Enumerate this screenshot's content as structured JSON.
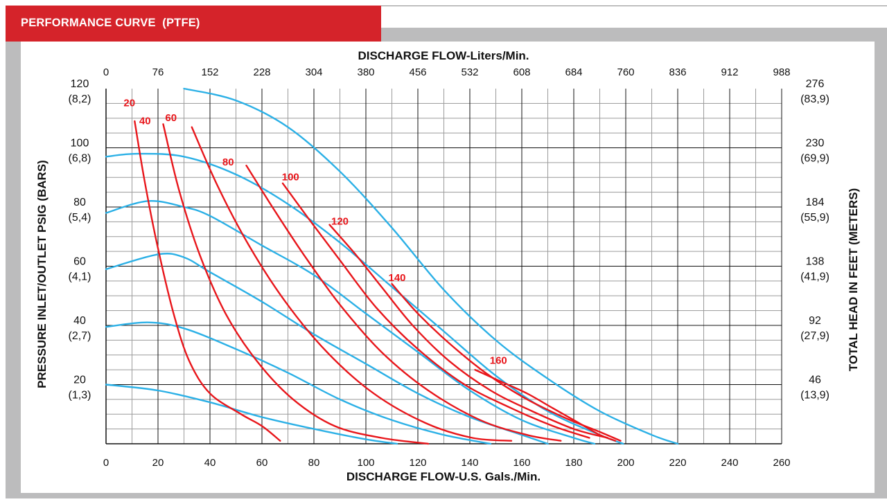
{
  "header": {
    "title": "PERFORMANCE CURVE  (PTFE)"
  },
  "chart_data": {
    "type": "line",
    "x_top_label": "DISCHARGE FLOW-Liters/Min.",
    "x_top_ticks": [
      "0",
      "76",
      "152",
      "228",
      "304",
      "380",
      "456",
      "532",
      "608",
      "684",
      "760",
      "836",
      "912",
      "988"
    ],
    "xlabel": "DISCHARGE FLOW-U.S. Gals./Min.",
    "x_ticks": [
      "0",
      "20",
      "40",
      "60",
      "80",
      "100",
      "120",
      "140",
      "160",
      "180",
      "200",
      "220",
      "240",
      "260"
    ],
    "xlim": [
      0,
      260
    ],
    "ylabel": "PRESSURE INLET/OUTLET PSIG (BARS)",
    "ylim": [
      0,
      120
    ],
    "y_left_ticks": [
      {
        "value": 120,
        "label": "120",
        "sub": "(8,2)"
      },
      {
        "value": 100,
        "label": "100",
        "sub": "(6,8)"
      },
      {
        "value": 80,
        "label": "80",
        "sub": "(5,4)"
      },
      {
        "value": 60,
        "label": "60",
        "sub": "(4,1)"
      },
      {
        "value": 40,
        "label": "40",
        "sub": "(2,7)"
      },
      {
        "value": 20,
        "label": "20",
        "sub": "(1,3)"
      }
    ],
    "y_right_label": "TOTAL HEAD IN FEET (METERS)",
    "y_right_ticks": [
      {
        "value": 120,
        "label": "276",
        "sub": "(83,9)"
      },
      {
        "value": 100,
        "label": "230",
        "sub": "(69,9)"
      },
      {
        "value": 80,
        "label": "184",
        "sub": "(55,9)"
      },
      {
        "value": 60,
        "label": "138",
        "sub": "(41,9)"
      },
      {
        "value": 40,
        "label": "92",
        "sub": "(27,9)"
      },
      {
        "value": 20,
        "label": "46",
        "sub": "(13,9)"
      }
    ],
    "grid": true,
    "colors": {
      "pressure_curves": "#2bb0e6",
      "air_curves": "#e8161b",
      "grid": "#111111",
      "minor_grid": "#9a9a9a"
    },
    "pressure_series": [
      {
        "points": [
          [
            0,
            20
          ],
          [
            20,
            18
          ],
          [
            40,
            14
          ],
          [
            60,
            9
          ],
          [
            80,
            5
          ],
          [
            100,
            1.5
          ],
          [
            112,
            0
          ]
        ]
      },
      {
        "points": [
          [
            0,
            39.5
          ],
          [
            16,
            41
          ],
          [
            30,
            39
          ],
          [
            50,
            32
          ],
          [
            70,
            24
          ],
          [
            90,
            15
          ],
          [
            110,
            8
          ],
          [
            130,
            3
          ],
          [
            148,
            0
          ]
        ]
      },
      {
        "points": [
          [
            0,
            59
          ],
          [
            20,
            64
          ],
          [
            30,
            63
          ],
          [
            40,
            58
          ],
          [
            60,
            48
          ],
          [
            80,
            37
          ],
          [
            100,
            27
          ],
          [
            120,
            17
          ],
          [
            140,
            9
          ],
          [
            160,
            3
          ],
          [
            170,
            0
          ]
        ]
      },
      {
        "points": [
          [
            0,
            78
          ],
          [
            16,
            82
          ],
          [
            30,
            80
          ],
          [
            40,
            77
          ],
          [
            60,
            67
          ],
          [
            80,
            57
          ],
          [
            100,
            44
          ],
          [
            120,
            31
          ],
          [
            140,
            18
          ],
          [
            160,
            8
          ],
          [
            180,
            2
          ],
          [
            188,
            0
          ]
        ]
      },
      {
        "points": [
          [
            0,
            97
          ],
          [
            12,
            98
          ],
          [
            30,
            97
          ],
          [
            50,
            91
          ],
          [
            70,
            81
          ],
          [
            90,
            68
          ],
          [
            110,
            53
          ],
          [
            130,
            38
          ],
          [
            150,
            23
          ],
          [
            170,
            11
          ],
          [
            190,
            3
          ],
          [
            199,
            0
          ]
        ]
      },
      {
        "points": [
          [
            30,
            120
          ],
          [
            50,
            116
          ],
          [
            70,
            107
          ],
          [
            90,
            92
          ],
          [
            110,
            73
          ],
          [
            130,
            52
          ],
          [
            150,
            35
          ],
          [
            170,
            22
          ],
          [
            190,
            11
          ],
          [
            210,
            3
          ],
          [
            220,
            0
          ]
        ]
      }
    ],
    "air_series": [
      {
        "name": "20",
        "label_at": [
          9,
          114
        ],
        "points": [
          [
            11,
            109
          ],
          [
            15,
            88
          ],
          [
            20,
            66
          ],
          [
            26,
            44
          ],
          [
            32,
            28
          ],
          [
            40,
            17
          ],
          [
            52,
            10
          ],
          [
            60,
            6
          ],
          [
            67,
            1
          ]
        ]
      },
      {
        "name": "40",
        "label_at": [
          15,
          108
        ],
        "points": [
          [
            22,
            108
          ],
          [
            28,
            86
          ],
          [
            36,
            64
          ],
          [
            46,
            44
          ],
          [
            58,
            28
          ],
          [
            72,
            15
          ],
          [
            88,
            6
          ],
          [
            106,
            2
          ],
          [
            124,
            0
          ]
        ]
      },
      {
        "name": "60",
        "label_at": [
          25,
          109
        ],
        "points": [
          [
            33,
            107
          ],
          [
            43,
            87
          ],
          [
            55,
            67
          ],
          [
            69,
            48
          ],
          [
            85,
            31
          ],
          [
            103,
            17
          ],
          [
            123,
            7
          ],
          [
            141,
            2
          ],
          [
            156,
            1
          ]
        ]
      },
      {
        "name": "80",
        "label_at": [
          47,
          94
        ],
        "points": [
          [
            54,
            94
          ],
          [
            64,
            80
          ],
          [
            76,
            64
          ],
          [
            90,
            47
          ],
          [
            106,
            31
          ],
          [
            124,
            18
          ],
          [
            144,
            8
          ],
          [
            162,
            3
          ],
          [
            175,
            1
          ]
        ]
      },
      {
        "name": "100",
        "label_at": [
          71,
          89
        ],
        "points": [
          [
            68,
            88
          ],
          [
            78,
            76
          ],
          [
            90,
            62
          ],
          [
            104,
            46
          ],
          [
            120,
            32
          ],
          [
            138,
            20
          ],
          [
            156,
            12
          ],
          [
            172,
            6
          ],
          [
            186,
            2
          ]
        ]
      },
      {
        "name": "120",
        "label_at": [
          90,
          74
        ],
        "points": [
          [
            86,
            74
          ],
          [
            96,
            64
          ],
          [
            106,
            53
          ],
          [
            118,
            40
          ],
          [
            132,
            28
          ],
          [
            148,
            18
          ],
          [
            164,
            11
          ],
          [
            180,
            5
          ],
          [
            193,
            2
          ]
        ]
      },
      {
        "name": "140",
        "label_at": [
          112,
          55
        ],
        "points": [
          [
            110,
            54
          ],
          [
            120,
            44
          ],
          [
            132,
            34
          ],
          [
            146,
            24
          ],
          [
            160,
            16
          ],
          [
            176,
            9
          ],
          [
            190,
            4
          ],
          [
            198,
            1
          ]
        ]
      },
      {
        "name": "160",
        "label_at": [
          151,
          27
        ],
        "points": [
          [
            142,
            25
          ],
          [
            152,
            21
          ],
          [
            162,
            17
          ],
          [
            172,
            12
          ],
          [
            182,
            7
          ],
          [
            190,
            3
          ],
          [
            196,
            1
          ]
        ]
      }
    ]
  }
}
